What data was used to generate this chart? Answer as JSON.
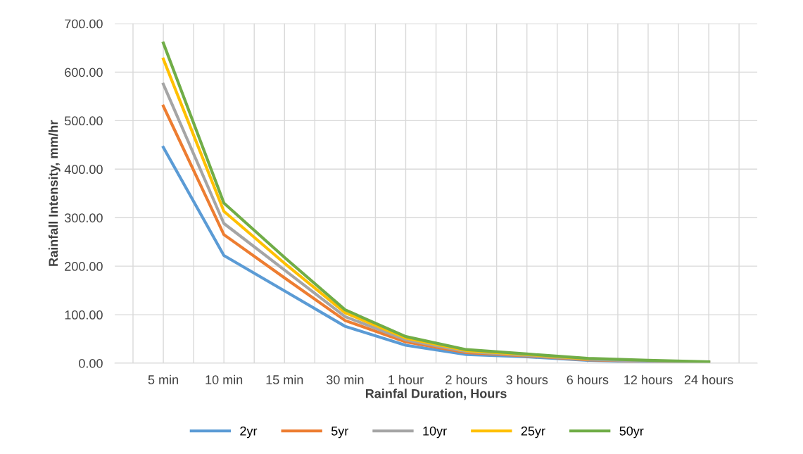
{
  "chart_data": {
    "type": "line",
    "xlabel": "Rainfal Duration, Hours",
    "ylabel": "Rainfall Intensity, mm/hr",
    "categories": [
      "5 min",
      "10 min",
      "15 min",
      "30 min",
      "1 hour",
      "2 hours",
      "3 hours",
      "6 hours",
      "12 hours",
      "24 hours"
    ],
    "series": [
      {
        "name": "2yr",
        "color": "#5b9bd5",
        "values": [
          445,
          222,
          149,
          76,
          37,
          18,
          13,
          6,
          3,
          2
        ]
      },
      {
        "name": "5yr",
        "color": "#ed7d31",
        "values": [
          530,
          265,
          176,
          88,
          44,
          22,
          15,
          7,
          4,
          2
        ]
      },
      {
        "name": "10yr",
        "color": "#a5a5a5",
        "values": [
          575,
          288,
          192,
          96,
          48,
          24,
          16,
          8,
          4,
          2
        ]
      },
      {
        "name": "25yr",
        "color": "#ffc000",
        "values": [
          627,
          313,
          206,
          104,
          52,
          26,
          18,
          9,
          null,
          null
        ]
      },
      {
        "name": "50yr",
        "color": "#70ad47",
        "values": [
          660,
          330,
          218,
          110,
          55,
          28,
          19,
          10,
          6,
          3
        ]
      }
    ],
    "ylim": [
      0,
      700
    ],
    "yticks": [
      {
        "value": 0,
        "label": "0.00"
      },
      {
        "value": 100,
        "label": "100.00"
      },
      {
        "value": 200,
        "label": "200.00"
      },
      {
        "value": 300,
        "label": "300.00"
      },
      {
        "value": 400,
        "label": "400.00"
      },
      {
        "value": 500,
        "label": "500.00"
      },
      {
        "value": 600,
        "label": "600.00"
      },
      {
        "value": 700,
        "label": "700.00"
      }
    ],
    "grid": true,
    "legend": "bottom",
    "marker": "none",
    "line_style": "solid"
  }
}
